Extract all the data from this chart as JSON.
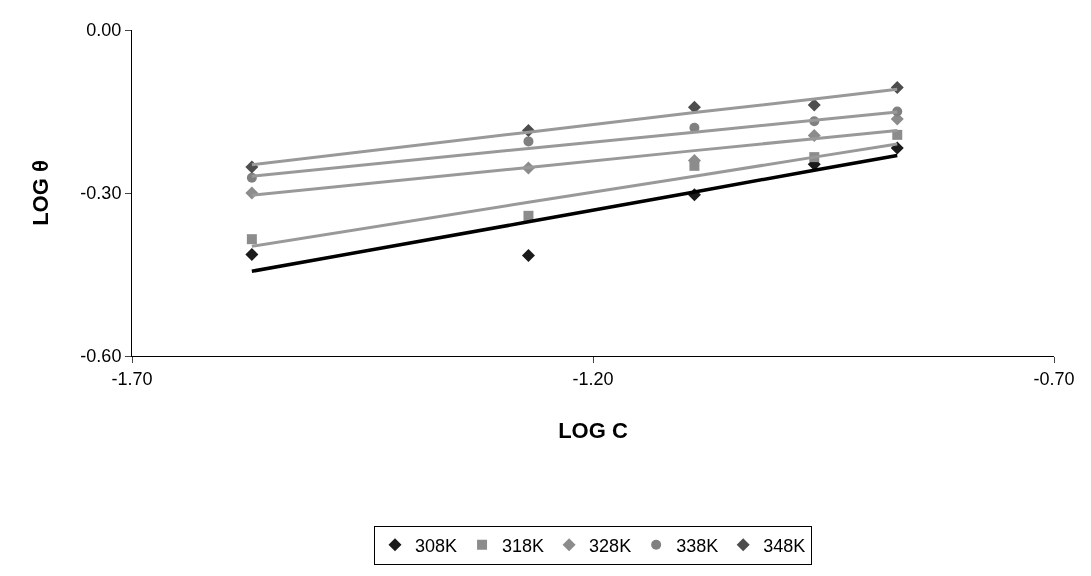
{
  "chart_data": {
    "type": "scatter",
    "xlabel": "LOG C",
    "ylabel": "LOG θ",
    "xlim": [
      -1.7,
      -0.7
    ],
    "xticks": [
      {
        "value": -1.7,
        "label": "-1.70"
      },
      {
        "value": -1.2,
        "label": "-1.20"
      },
      {
        "value": -0.7,
        "label": "-0.70"
      }
    ],
    "ylim": [
      -0.6,
      0
    ],
    "yticks": [
      {
        "value": -0.6,
        "label": "-0.60"
      },
      {
        "value": -0.3,
        "label": "-0.30"
      },
      {
        "value": 0,
        "label": "0.00"
      }
    ],
    "x": [
      -1.57,
      -1.27,
      -1.09,
      -0.96,
      -0.87
    ],
    "grid": false,
    "legend": "bottom",
    "series": [
      {
        "name": "308K",
        "color": "#1a1a1a",
        "marker": "diamond",
        "values": [
          -0.413,
          -0.415,
          -0.303,
          -0.247,
          -0.217
        ]
      },
      {
        "name": "318K",
        "color": "#8c8c8c",
        "marker": "square",
        "values": [
          -0.385,
          -0.342,
          -0.25,
          -0.234,
          -0.193
        ]
      },
      {
        "name": "328K",
        "color": "#8c8c8c",
        "marker": "diamond",
        "values": [
          -0.3,
          -0.254,
          -0.24,
          -0.194,
          -0.164
        ]
      },
      {
        "name": "338K",
        "color": "#808080",
        "marker": "circle",
        "values": [
          -0.272,
          -0.205,
          -0.18,
          -0.168,
          -0.15
        ]
      },
      {
        "name": "348K",
        "color": "#4d4d4d",
        "marker": "diamond",
        "values": [
          -0.252,
          -0.185,
          -0.142,
          -0.138,
          -0.106
        ]
      },
      {
        "type": "line",
        "color": "#000000",
        "values": [
          -0.444,
          -0.353,
          -0.298,
          -0.258,
          -0.231
        ]
      },
      {
        "type": "line",
        "color": "#999999",
        "values": [
          -0.398,
          -0.317,
          -0.269,
          -0.234,
          -0.21
        ]
      },
      {
        "type": "line",
        "color": "#999999",
        "values": [
          -0.304,
          -0.253,
          -0.222,
          -0.2,
          -0.185
        ]
      },
      {
        "type": "line",
        "color": "#999999",
        "values": [
          -0.269,
          -0.218,
          -0.188,
          -0.166,
          -0.151
        ]
      },
      {
        "type": "line",
        "color": "#999999",
        "values": [
          -0.248,
          -0.188,
          -0.152,
          -0.127,
          -0.109
        ]
      }
    ]
  }
}
